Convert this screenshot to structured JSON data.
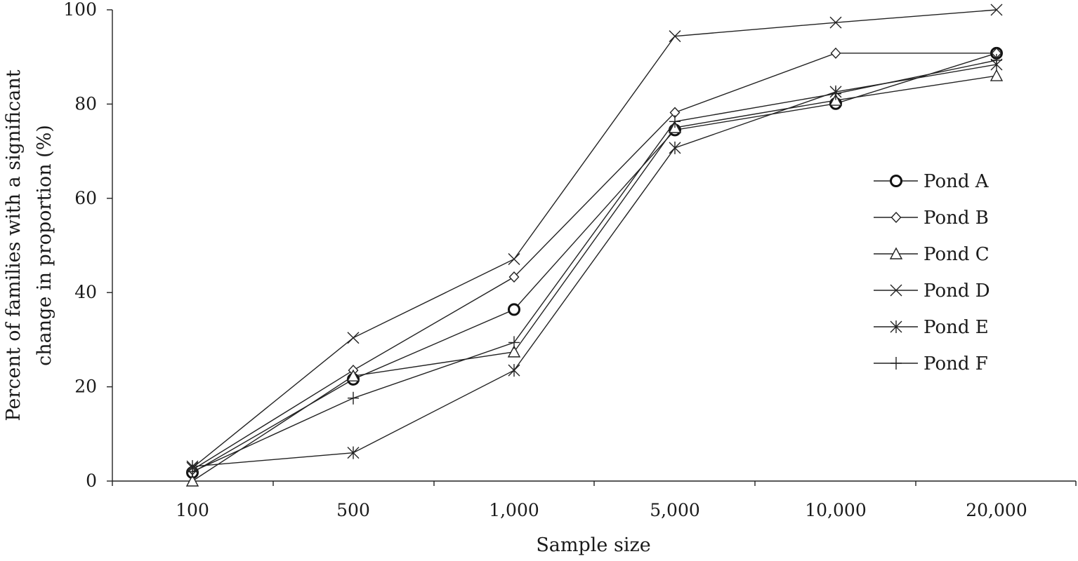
{
  "chart_data": {
    "type": "line",
    "title": "",
    "xlabel": "Sample size",
    "ylabel_lines": [
      "Percent of families with a significant",
      "change in proportion (%)"
    ],
    "categories": [
      "100",
      "500",
      "1,000",
      "5,000",
      "10,000",
      "20,000"
    ],
    "y_ticks": [
      "0",
      "20",
      "40",
      "60",
      "80",
      "100"
    ],
    "ylim": [
      0,
      100
    ],
    "grid": false,
    "legend_position": "right",
    "series": [
      {
        "name": "Pond A",
        "marker": "circle-bold",
        "values": [
          1.8,
          21.6,
          36.4,
          74.5,
          80.1,
          90.8
        ]
      },
      {
        "name": "Pond B",
        "marker": "diamond",
        "values": [
          2.4,
          23.5,
          43.3,
          78.2,
          90.8,
          90.8
        ]
      },
      {
        "name": "Pond C",
        "marker": "triangle",
        "values": [
          0.0,
          22.3,
          27.4,
          75.0,
          80.8,
          86.0
        ]
      },
      {
        "name": "Pond D",
        "marker": "x",
        "values": [
          2.8,
          30.4,
          47.1,
          94.4,
          97.3,
          100.0
        ]
      },
      {
        "name": "Pond E",
        "marker": "asterisk",
        "values": [
          3.1,
          6.0,
          23.5,
          70.7,
          82.6,
          88.4
        ]
      },
      {
        "name": "Pond F",
        "marker": "plus",
        "values": [
          2.0,
          17.6,
          29.4,
          76.3,
          82.2,
          89.3
        ]
      }
    ]
  }
}
